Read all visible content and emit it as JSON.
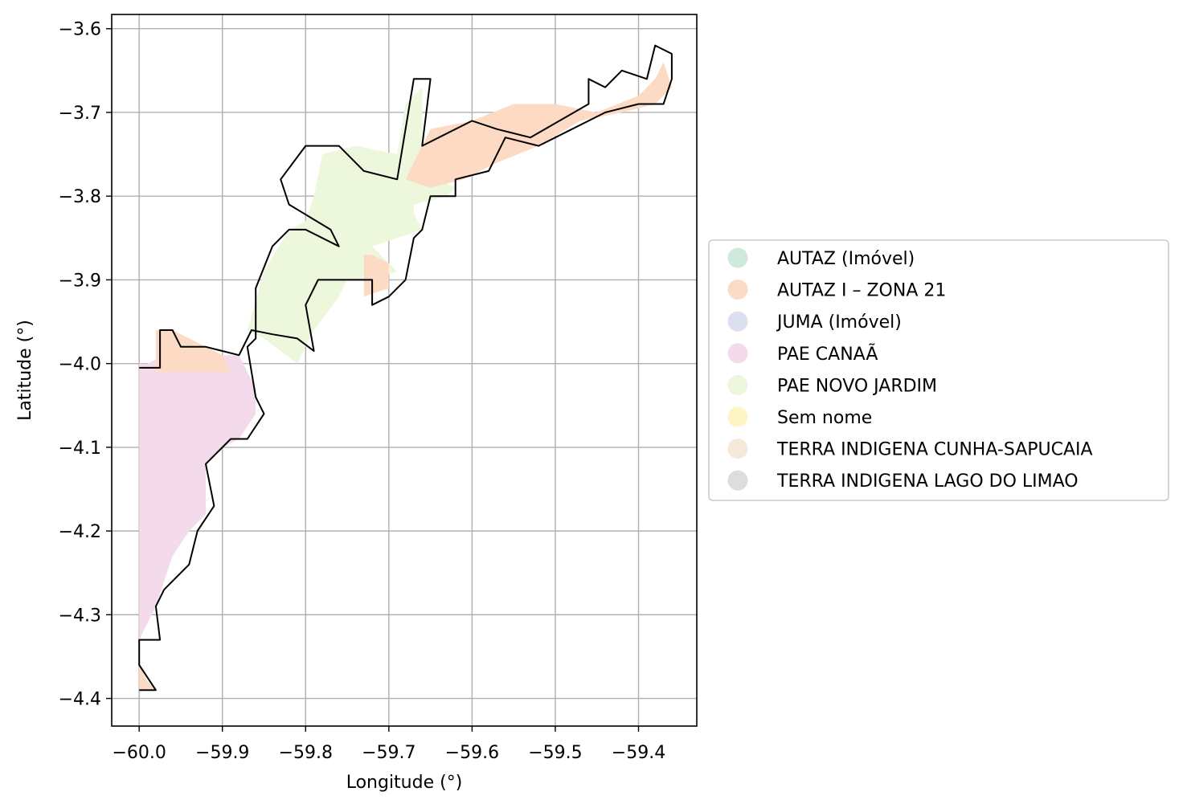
{
  "chart_data": {
    "type": "map",
    "xlabel": "Longitude (°)",
    "ylabel": "Latitude (°)",
    "xlim": [
      -60.033,
      -59.33
    ],
    "ylim": [
      -4.433,
      -3.583
    ],
    "xticks": [
      -60.0,
      -59.9,
      -59.8,
      -59.7,
      -59.6,
      -59.5,
      -59.4
    ],
    "xtick_labels": [
      "−60.0",
      "−59.9",
      "−59.8",
      "−59.7",
      "−59.6",
      "−59.5",
      "−59.4"
    ],
    "yticks": [
      -3.6,
      -3.7,
      -3.8,
      -3.9,
      -4.0,
      -4.1,
      -4.2,
      -4.3,
      -4.4
    ],
    "ytick_labels": [
      "−3.6",
      "−3.7",
      "−3.8",
      "−3.9",
      "−4.0",
      "−4.1",
      "−4.2",
      "−4.3",
      "−4.4"
    ],
    "grid": true,
    "legend_position": "right",
    "legend": [
      {
        "label": "AUTAZ (Imóvel)",
        "color": "#cdeadc"
      },
      {
        "label": "AUTAZ I – ZONA 21",
        "color": "#fddac3"
      },
      {
        "label": "JUMA (Imóvel)",
        "color": "#dbe0f0"
      },
      {
        "label": "PAE CANAÃ",
        "color": "#f4dbec"
      },
      {
        "label": "PAE NOVO JARDIM",
        "color": "#edf7dc"
      },
      {
        "label": "Sem nome",
        "color": "#fff4c4"
      },
      {
        "label": "TERRA INDIGENA CUNHA-SAPUCAIA",
        "color": "#f5e9dc"
      },
      {
        "label": "TERRA INDIGENA LAGO DO LIMAO",
        "color": "#dddddd"
      }
    ],
    "regions": [
      {
        "name": "PAE NOVO JARDIM",
        "color": "#edf7dc",
        "coords": [
          [
            -59.79,
            -3.8
          ],
          [
            -59.78,
            -3.75
          ],
          [
            -59.74,
            -3.74
          ],
          [
            -59.69,
            -3.75
          ],
          [
            -59.68,
            -3.69
          ],
          [
            -59.66,
            -3.67
          ],
          [
            -59.66,
            -3.76
          ],
          [
            -59.64,
            -3.78
          ],
          [
            -59.62,
            -3.79
          ],
          [
            -59.63,
            -3.8
          ],
          [
            -59.67,
            -3.81
          ],
          [
            -59.67,
            -3.82
          ],
          [
            -59.66,
            -3.84
          ],
          [
            -59.69,
            -3.85
          ],
          [
            -59.72,
            -3.86
          ],
          [
            -59.69,
            -3.89
          ],
          [
            -59.72,
            -3.9
          ],
          [
            -59.75,
            -3.9
          ],
          [
            -59.76,
            -3.92
          ],
          [
            -59.79,
            -3.96
          ],
          [
            -59.81,
            -4.0
          ],
          [
            -59.85,
            -3.97
          ],
          [
            -59.87,
            -3.96
          ],
          [
            -59.85,
            -3.89
          ],
          [
            -59.82,
            -3.84
          ],
          [
            -59.8,
            -3.83
          ]
        ]
      },
      {
        "name": "AUTAZ I – ZONA 21",
        "color": "#fddac3",
        "coords": [
          [
            -59.68,
            -3.78
          ],
          [
            -59.65,
            -3.72
          ],
          [
            -59.6,
            -3.71
          ],
          [
            -59.55,
            -3.69
          ],
          [
            -59.5,
            -3.69
          ],
          [
            -59.45,
            -3.7
          ],
          [
            -59.4,
            -3.68
          ],
          [
            -59.38,
            -3.66
          ],
          [
            -59.37,
            -3.64
          ],
          [
            -59.36,
            -3.67
          ],
          [
            -59.38,
            -3.69
          ],
          [
            -59.42,
            -3.7
          ],
          [
            -59.47,
            -3.71
          ],
          [
            -59.52,
            -3.74
          ],
          [
            -59.57,
            -3.76
          ],
          [
            -59.61,
            -3.78
          ],
          [
            -59.65,
            -3.79
          ]
        ]
      },
      {
        "name": "AUTAZ I – ZONA 21",
        "color": "#fddac3",
        "coords": [
          [
            -59.73,
            -3.87
          ],
          [
            -59.72,
            -3.87
          ],
          [
            -59.7,
            -3.88
          ],
          [
            -59.7,
            -3.91
          ],
          [
            -59.73,
            -3.92
          ]
        ]
      },
      {
        "name": "PAE CANAÃ",
        "color": "#f4dbec",
        "coords": [
          [
            -60.0,
            -4.0
          ],
          [
            -59.99,
            -4.0
          ],
          [
            -59.97,
            -3.99
          ],
          [
            -59.94,
            -3.99
          ],
          [
            -59.92,
            -3.99
          ],
          [
            -59.88,
            -3.99
          ],
          [
            -59.86,
            -4.03
          ],
          [
            -59.86,
            -4.06
          ],
          [
            -59.88,
            -4.09
          ],
          [
            -59.9,
            -4.1
          ],
          [
            -59.92,
            -4.12
          ],
          [
            -59.92,
            -4.18
          ],
          [
            -59.94,
            -4.2
          ],
          [
            -59.96,
            -4.23
          ],
          [
            -59.97,
            -4.26
          ],
          [
            -59.98,
            -4.29
          ],
          [
            -59.99,
            -4.31
          ],
          [
            -60.0,
            -4.33
          ]
        ]
      },
      {
        "name": "AUTAZ I – ZONA 21",
        "color": "#fddac3",
        "coords": [
          [
            -59.98,
            -3.96
          ],
          [
            -59.96,
            -3.96
          ],
          [
            -59.92,
            -3.98
          ],
          [
            -59.9,
            -3.99
          ],
          [
            -59.89,
            -4.01
          ],
          [
            -59.98,
            -4.01
          ]
        ]
      },
      {
        "name": "AUTAZ I – ZONA 21",
        "color": "#fddac3",
        "coords": [
          [
            -60.0,
            -4.36
          ],
          [
            -59.99,
            -4.38
          ],
          [
            -59.98,
            -4.39
          ],
          [
            -60.0,
            -4.39
          ]
        ]
      }
    ],
    "boundary": [
      [
        -60.0,
        -4.005
      ],
      [
        -59.975,
        -4.005
      ],
      [
        -59.975,
        -3.96
      ],
      [
        -59.96,
        -3.96
      ],
      [
        -59.95,
        -3.98
      ],
      [
        -59.92,
        -3.98
      ],
      [
        -59.9,
        -3.985
      ],
      [
        -59.88,
        -3.99
      ],
      [
        -59.865,
        -3.96
      ],
      [
        -59.84,
        -3.965
      ],
      [
        -59.81,
        -3.97
      ],
      [
        -59.79,
        -3.985
      ],
      [
        -59.8,
        -3.93
      ],
      [
        -59.785,
        -3.9
      ],
      [
        -59.75,
        -3.9
      ],
      [
        -59.72,
        -3.9
      ],
      [
        -59.72,
        -3.93
      ],
      [
        -59.7,
        -3.92
      ],
      [
        -59.68,
        -3.9
      ],
      [
        -59.67,
        -3.85
      ],
      [
        -59.66,
        -3.84
      ],
      [
        -59.65,
        -3.8
      ],
      [
        -59.62,
        -3.8
      ],
      [
        -59.62,
        -3.78
      ],
      [
        -59.58,
        -3.77
      ],
      [
        -59.56,
        -3.73
      ],
      [
        -59.52,
        -3.74
      ],
      [
        -59.5,
        -3.73
      ],
      [
        -59.44,
        -3.7
      ],
      [
        -59.4,
        -3.69
      ],
      [
        -59.37,
        -3.69
      ],
      [
        -59.36,
        -3.66
      ],
      [
        -59.36,
        -3.63
      ],
      [
        -59.38,
        -3.62
      ],
      [
        -59.39,
        -3.66
      ],
      [
        -59.42,
        -3.65
      ],
      [
        -59.44,
        -3.67
      ],
      [
        -59.46,
        -3.66
      ],
      [
        -59.46,
        -3.69
      ],
      [
        -59.53,
        -3.73
      ],
      [
        -59.57,
        -3.72
      ],
      [
        -59.6,
        -3.71
      ],
      [
        -59.64,
        -3.73
      ],
      [
        -59.66,
        -3.74
      ],
      [
        -59.65,
        -3.66
      ],
      [
        -59.67,
        -3.66
      ],
      [
        -59.68,
        -3.72
      ],
      [
        -59.69,
        -3.78
      ],
      [
        -59.73,
        -3.77
      ],
      [
        -59.76,
        -3.74
      ],
      [
        -59.8,
        -3.74
      ],
      [
        -59.83,
        -3.78
      ],
      [
        -59.82,
        -3.81
      ],
      [
        -59.77,
        -3.84
      ],
      [
        -59.76,
        -3.86
      ],
      [
        -59.8,
        -3.84
      ],
      [
        -59.82,
        -3.84
      ],
      [
        -59.84,
        -3.86
      ],
      [
        -59.86,
        -3.91
      ],
      [
        -59.86,
        -3.97
      ],
      [
        -59.87,
        -3.98
      ],
      [
        -59.86,
        -4.04
      ],
      [
        -59.85,
        -4.06
      ],
      [
        -59.87,
        -4.09
      ],
      [
        -59.89,
        -4.09
      ],
      [
        -59.92,
        -4.12
      ],
      [
        -59.91,
        -4.17
      ],
      [
        -59.93,
        -4.2
      ],
      [
        -59.94,
        -4.24
      ],
      [
        -59.97,
        -4.27
      ],
      [
        -59.98,
        -4.29
      ],
      [
        -59.975,
        -4.33
      ],
      [
        -60.0,
        -4.33
      ],
      [
        -60.0,
        -4.36
      ],
      [
        -59.98,
        -4.39
      ],
      [
        -60.0,
        -4.39
      ]
    ]
  }
}
